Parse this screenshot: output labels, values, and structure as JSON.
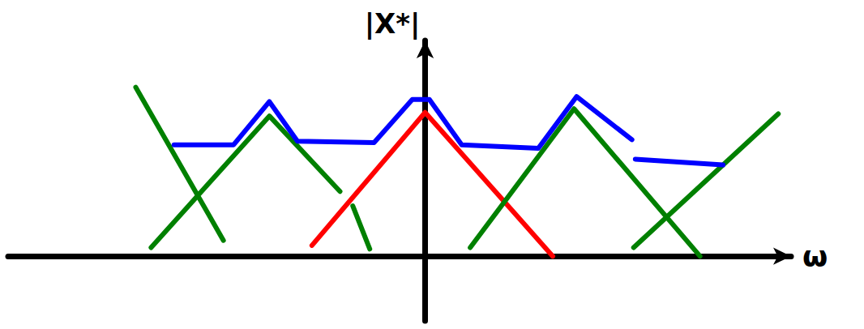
{
  "chart_data": {
    "type": "line",
    "tick_labels": false,
    "grid": false,
    "xlabel": "ω",
    "ylabel": "|X*|",
    "xlim": [
      -4.9,
      4.3
    ],
    "ylim": [
      -0.9,
      3.0
    ],
    "series": [
      {
        "color": "#ff0000",
        "line_style": "solid",
        "x": [
          -1.33,
          0,
          1.5
        ],
        "values": [
          0.15,
          2.0,
          0
        ]
      },
      {
        "color": "#008000",
        "line_style": "solid",
        "x": [
          -3.4,
          -2.37,
          null,
          -3.22,
          -1.83,
          -1.0,
          null,
          -0.85,
          -0.65,
          null,
          0.53,
          1.75,
          3.23,
          null,
          2.45,
          4.15
        ],
        "values": [
          2.35,
          0.22,
          null,
          0.12,
          1.95,
          0.9,
          null,
          0.7,
          0.1,
          null,
          0.12,
          2.05,
          0,
          null,
          0.12,
          1.98
        ]
      },
      {
        "color": "#0000ff",
        "line_style": "solid",
        "x": [
          -2.95,
          -2.25,
          -1.83,
          -1.5,
          -0.6,
          -0.15,
          0.05,
          0.43,
          1.33,
          1.78,
          2.43,
          null,
          2.47,
          3.5
        ],
        "values": [
          1.55,
          1.55,
          2.15,
          1.6,
          1.58,
          2.18,
          2.18,
          1.55,
          1.5,
          2.22,
          1.62,
          null,
          1.35,
          1.27
        ]
      }
    ]
  }
}
